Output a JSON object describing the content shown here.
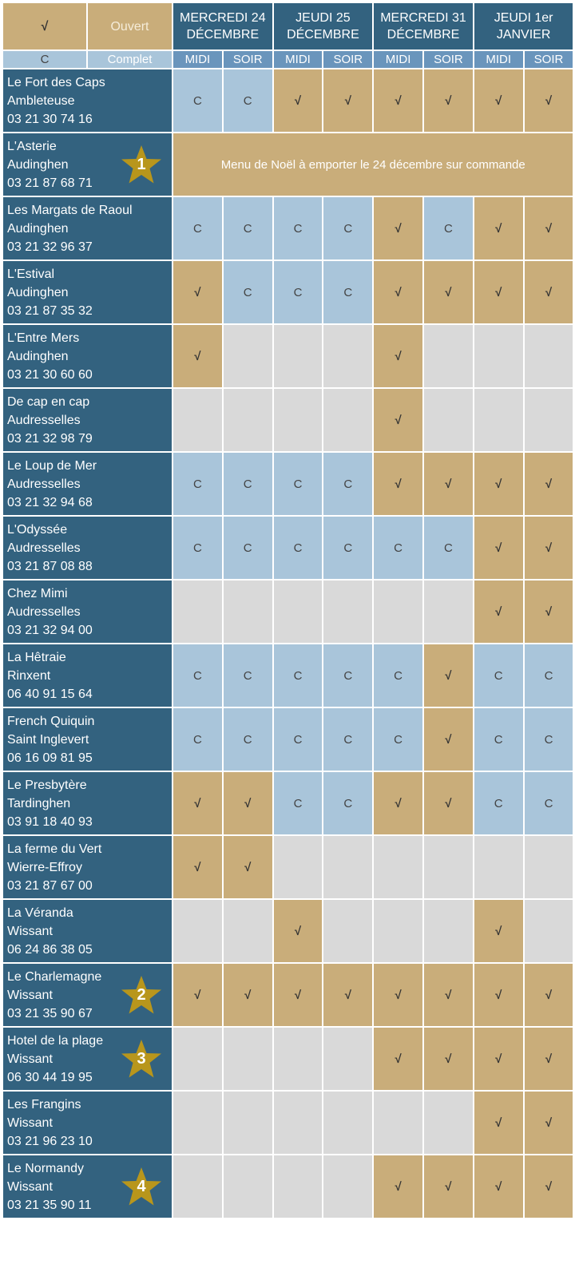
{
  "legend": {
    "open_symbol": "√",
    "open_label": "Ouvert",
    "full_symbol": "C",
    "full_label": "Complet"
  },
  "days": [
    "MERCREDI 24 DÉCEMBRE",
    "JEUDI 25 DÉCEMBRE",
    "MERCREDI 31 DÉCEMBRE",
    "JEUDI 1er JANVIER"
  ],
  "services": [
    "MIDI",
    "SOIR",
    "MIDI",
    "SOIR",
    "MIDI",
    "SOIR",
    "MIDI",
    "SOIR"
  ],
  "colors": {
    "open": "#C9AD7A",
    "full": "#A9C5DA",
    "closed": "#D9D9D9",
    "name": "#33627F",
    "star": "#B8961C"
  },
  "restaurants": [
    {
      "name": "Le Fort des Caps",
      "town": "Ambleteuse",
      "phone": "03 21 30 74 16",
      "slots": [
        "C",
        "C",
        "√",
        "√",
        "√",
        "√",
        "√",
        "√"
      ]
    },
    {
      "name": "L'Asterie",
      "town": "Audinghen",
      "phone": "03 21 87 68 71",
      "star": "1",
      "message": "Menu de Noël à emporter le 24 décembre sur commande"
    },
    {
      "name": "Les Margats de Raoul",
      "town": "Audinghen",
      "phone": "03 21 32 96 37",
      "slots": [
        "C",
        "C",
        "C",
        "C",
        "√",
        "C",
        "√",
        "√"
      ]
    },
    {
      "name": "L'Estival",
      "town": "Audinghen",
      "phone": "03 21 87 35 32",
      "slots": [
        "√",
        "C",
        "C",
        "C",
        "√",
        "√",
        "√",
        "√"
      ]
    },
    {
      "name": "L'Entre Mers",
      "town": "Audinghen",
      "phone": "03 21 30 60 60",
      "slots": [
        "√",
        "",
        "",
        "",
        "√",
        "",
        "",
        ""
      ]
    },
    {
      "name": "De cap en cap",
      "town": "Audresselles",
      "phone": "03 21 32 98 79",
      "slots": [
        "",
        "",
        "",
        "",
        "√",
        "",
        "",
        ""
      ]
    },
    {
      "name": "Le Loup de Mer",
      "town": "Audresselles",
      "phone": "03 21 32 94 68",
      "slots": [
        "C",
        "C",
        "C",
        "C",
        "√",
        "√",
        "√",
        "√"
      ]
    },
    {
      "name": "L'Odyssée",
      "town": "Audresselles",
      "phone": "03 21 87 08 88",
      "slots": [
        "C",
        "C",
        "C",
        "C",
        "C",
        "C",
        "√",
        "√"
      ]
    },
    {
      "name": "Chez Mimi",
      "town": "Audresselles",
      "phone": "03 21 32 94 00",
      "slots": [
        "",
        "",
        "",
        "",
        "",
        "",
        "√",
        "√"
      ]
    },
    {
      "name": "La Hêtraie",
      "town": "Rinxent",
      "phone": "06 40 91 15 64",
      "slots": [
        "C",
        "C",
        "C",
        "C",
        "C",
        "√",
        "C",
        "C"
      ]
    },
    {
      "name": "French Quiquin",
      "town": "Saint Inglevert",
      "phone": "06 16 09 81 95",
      "slots": [
        "C",
        "C",
        "C",
        "C",
        "C",
        "√",
        "C",
        "C"
      ]
    },
    {
      "name": "Le Presbytère",
      "town": "Tardinghen",
      "phone": "03 91 18 40 93",
      "slots": [
        "√",
        "√",
        "C",
        "C",
        "√",
        "√",
        "C",
        "C"
      ]
    },
    {
      "name": "La ferme du Vert",
      "town": "Wierre-Effroy",
      "phone": "03 21 87 67 00",
      "slots": [
        "√",
        "√",
        "",
        "",
        "",
        "",
        "",
        ""
      ]
    },
    {
      "name": "La Véranda",
      "town": "Wissant",
      "phone": "06 24 86 38 05",
      "slots": [
        "",
        "",
        "√",
        "",
        "",
        "",
        "√",
        ""
      ]
    },
    {
      "name": "Le Charlemagne",
      "town": "Wissant",
      "phone": "03 21 35 90 67",
      "star": "2",
      "slots": [
        "√",
        "√",
        "√",
        "√",
        "√",
        "√",
        "√",
        "√"
      ]
    },
    {
      "name": "Hotel de la plage",
      "town": "Wissant",
      "phone": "06 30 44 19 95",
      "star": "3",
      "slots": [
        "",
        "",
        "",
        "",
        "√",
        "√",
        "√",
        "√"
      ]
    },
    {
      "name": "Les Frangins",
      "town": "Wissant",
      "phone": "03 21 96 23 10",
      "slots": [
        "",
        "",
        "",
        "",
        "",
        "",
        "√",
        "√"
      ]
    },
    {
      "name": "Le Normandy",
      "town": "Wissant",
      "phone": "03 21 35 90 11",
      "star": "4",
      "slots": [
        "",
        "",
        "",
        "",
        "√",
        "√",
        "√",
        "√"
      ]
    }
  ]
}
